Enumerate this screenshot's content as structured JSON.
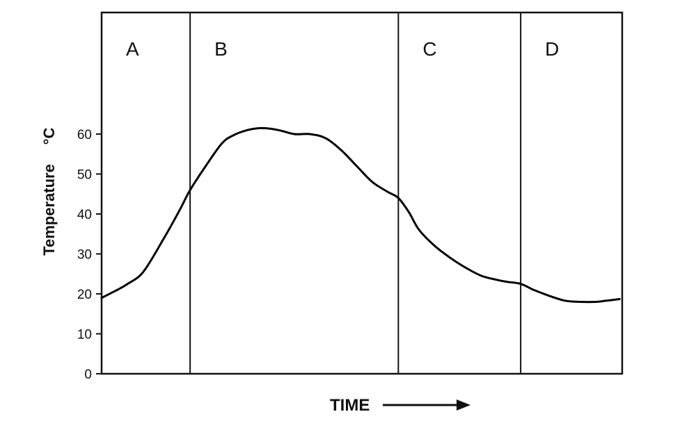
{
  "chart_data": {
    "type": "line",
    "ylabel": "Temperature",
    "ylabel_unit": "°C",
    "xlabel": "TIME",
    "xlabel_arrow": "right-arrow",
    "ylim": [
      0,
      70
    ],
    "yticks": [
      0,
      10,
      20,
      30,
      40,
      50,
      60
    ],
    "xlim": [
      0,
      100
    ],
    "regions": [
      {
        "label": "A",
        "start": 0,
        "end": 17
      },
      {
        "label": "B",
        "start": 17,
        "end": 57
      },
      {
        "label": "C",
        "start": 57,
        "end": 80.5
      },
      {
        "label": "D",
        "start": 80.5,
        "end": 100
      }
    ],
    "series": [
      {
        "color": "#000000",
        "x": [
          0,
          3,
          5,
          8,
          12,
          15,
          17,
          20,
          23,
          25,
          28,
          31,
          34,
          37,
          40,
          43,
          46,
          49,
          52,
          55,
          57,
          59,
          61,
          64,
          67,
          70,
          73,
          76,
          78,
          80.5,
          83,
          86,
          89,
          92,
          95,
          97,
          99.5
        ],
        "y": [
          19,
          21,
          22.5,
          25.5,
          34,
          41,
          46,
          52,
          57.5,
          59.5,
          61,
          61.5,
          61,
          60,
          60,
          59,
          56,
          52,
          48,
          45.5,
          44,
          40.5,
          36,
          32,
          29,
          26.5,
          24.5,
          23.5,
          23,
          22.5,
          21,
          19.5,
          18.3,
          18,
          18,
          18.3,
          18.7
        ]
      }
    ]
  }
}
